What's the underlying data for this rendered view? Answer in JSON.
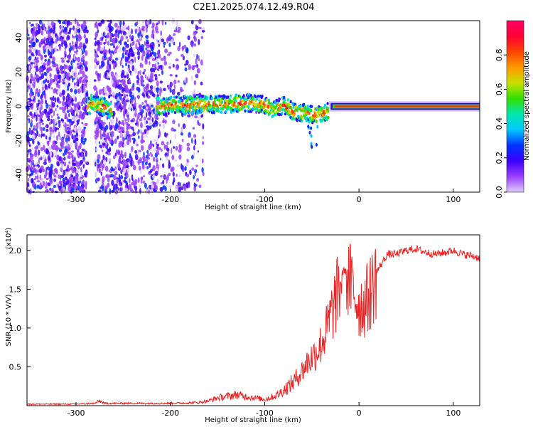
{
  "chart_data": [
    {
      "type": "heatmap",
      "title": "C2E1.2025.074.12.49.R04",
      "xlabel": "Height of straight line (km)",
      "ylabel": "Frequency (Hz)",
      "xlim": [
        -352,
        128
      ],
      "ylim": [
        -50,
        50
      ],
      "x_ticks": [
        -300,
        -200,
        -100,
        0,
        100
      ],
      "x_tick_labels": [
        "-300",
        "-200",
        "-100",
        "0",
        "100"
      ],
      "y_ticks": [
        -40,
        -20,
        0,
        20,
        40
      ],
      "y_tick_labels": [
        "-40",
        "-20",
        "0",
        "20",
        "40"
      ],
      "colorbar": {
        "label": "Normalized spectral amplitude",
        "range": [
          0,
          1
        ],
        "ticks": [
          0.0,
          0.2,
          0.4,
          0.6,
          0.8
        ],
        "tick_labels": [
          "0.0",
          "0.2",
          "0.4",
          "0.6",
          "0.8"
        ],
        "colors": [
          "#e0ccff",
          "#9a40ff",
          "#3b00ff",
          "#0033ff",
          "#00c8ff",
          "#00e8b0",
          "#30e000",
          "#c8e000",
          "#ff9900",
          "#ff4400",
          "#ff0033",
          "#ff0066"
        ]
      },
      "ridge_center_hz": [
        [
          -285,
          2
        ],
        [
          -270,
          0
        ],
        [
          -260,
          -3
        ],
        [
          -240,
          0
        ],
        [
          -210,
          0
        ],
        [
          -190,
          1
        ],
        [
          -175,
          1
        ],
        [
          -150,
          1
        ],
        [
          -120,
          2
        ],
        [
          -100,
          1
        ],
        [
          -90,
          -2
        ],
        [
          -80,
          1
        ],
        [
          -70,
          -3
        ],
        [
          -55,
          -4
        ],
        [
          -45,
          -5
        ],
        [
          -40,
          -4
        ],
        [
          -32,
          -3
        ],
        [
          -28,
          1
        ],
        [
          -20,
          2
        ],
        [
          -10,
          1
        ],
        [
          0,
          0
        ],
        [
          50,
          0
        ],
        [
          128,
          0
        ]
      ]
    },
    {
      "type": "line",
      "xlabel": "Height of straight line (km)",
      "ylabel": "SNR (10 * V/V)",
      "y_scale_label": "(x10⁴)",
      "xlim": [
        -352,
        128
      ],
      "ylim": [
        0,
        2.2
      ],
      "x_ticks": [
        -300,
        -200,
        -100,
        0,
        100
      ],
      "x_tick_labels": [
        "-300",
        "-200",
        "-100",
        "0",
        "100"
      ],
      "y_ticks": [
        0.5,
        1.0,
        1.5,
        2.0
      ],
      "y_tick_labels": [
        "0.5",
        "1.0",
        "1.5",
        "2.0"
      ],
      "series": [
        {
          "name": "SNR",
          "color": "#ee2222",
          "x": [
            -352,
            -300,
            -280,
            -275,
            -270,
            -250,
            -200,
            -170,
            -160,
            -155,
            -150,
            -140,
            -130,
            -120,
            -110,
            -100,
            -90,
            -85,
            -80,
            -75,
            -70,
            -65,
            -60,
            -55,
            -50,
            -45,
            -40,
            -35,
            -30,
            -25,
            -20,
            -18,
            -15,
            -10,
            -5,
            0,
            5,
            10,
            15,
            20,
            25,
            30,
            40,
            50,
            60,
            70,
            80,
            90,
            100,
            110,
            120,
            128
          ],
          "values": [
            0.02,
            0.02,
            0.03,
            0.06,
            0.03,
            0.03,
            0.03,
            0.04,
            0.06,
            0.08,
            0.1,
            0.12,
            0.14,
            0.12,
            0.1,
            0.08,
            0.12,
            0.15,
            0.2,
            0.25,
            0.3,
            0.38,
            0.45,
            0.55,
            0.62,
            0.7,
            0.8,
            0.95,
            1.15,
            1.35,
            1.55,
            1.7,
            1.75,
            1.6,
            1.45,
            1.3,
            1.3,
            1.4,
            1.55,
            1.75,
            1.85,
            1.95,
            1.95,
            2.0,
            2.02,
            1.98,
            1.95,
            1.97,
            2.0,
            1.95,
            1.93,
            1.9
          ]
        }
      ]
    }
  ]
}
